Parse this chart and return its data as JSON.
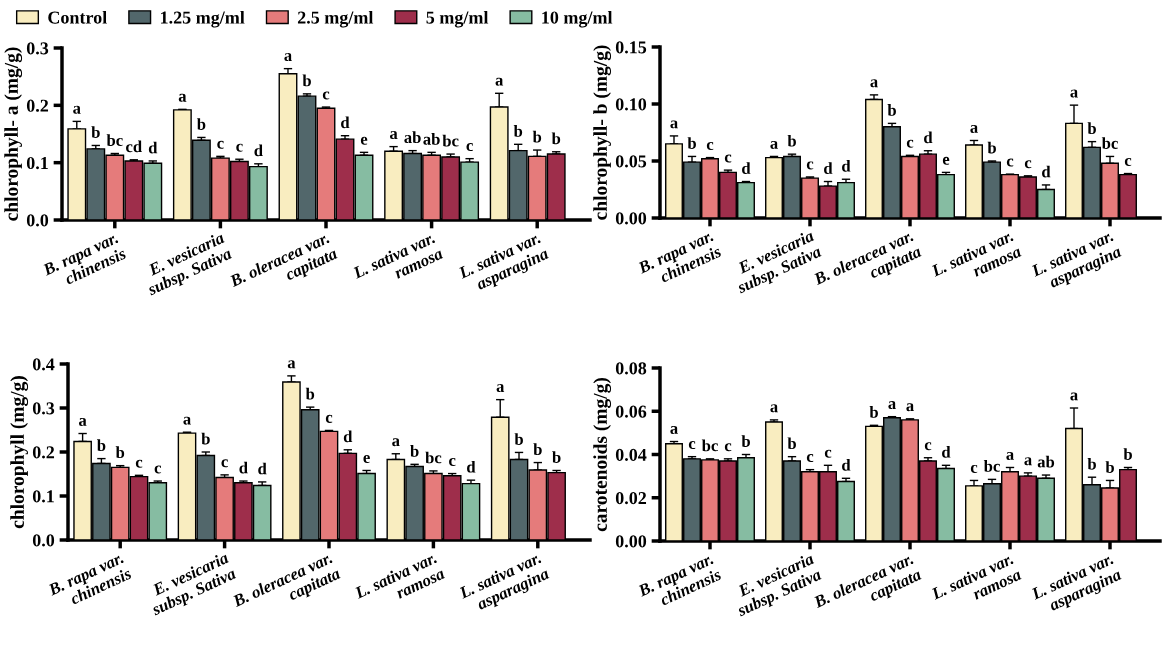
{
  "chart_data": [
    {
      "type": "bar",
      "ylabel": "chlorophyll- a (mg/g)",
      "legend": "top left",
      "categories": [
        "B. rapa var.\nchinensis",
        "E. vesicaria\nsubsp. Sativa",
        "B. oleracea var.\ncapitata",
        "L. sativa var.\nramosa",
        "L. sativa var.\nasparagina"
      ],
      "ylim": [
        0,
        0.3
      ],
      "yticks": [
        {
          "value": 0,
          "label": "0.0"
        },
        0.1,
        0.2,
        0.3
      ],
      "series": [
        {
          "name": "Control",
          "color": "#f9edc0",
          "values": [
            0.159,
            0.192,
            0.255,
            0.12,
            0.197
          ],
          "errors": [
            [
              0.159,
              0.172
            ],
            [
              0.192,
              0.193
            ],
            [
              0.255,
              0.264
            ],
            [
              0.12,
              0.128
            ],
            [
              0.197,
              0.221
            ]
          ],
          "value_labels": [
            "a",
            "a",
            "a",
            "a",
            "a"
          ]
        },
        {
          "name": "1.25 mg/ml",
          "color": "#52676b",
          "values": [
            0.124,
            0.139,
            0.216,
            0.116,
            0.121
          ],
          "errors": [
            [
              0.124,
              0.13
            ],
            [
              0.139,
              0.144
            ],
            [
              0.216,
              0.22
            ],
            [
              0.116,
              0.121
            ],
            [
              0.121,
              0.132
            ]
          ],
          "value_labels": [
            "b",
            "b",
            "b",
            "ab",
            "b"
          ]
        },
        {
          "name": "2.5 mg/ml",
          "color": "#e57b7b",
          "values": [
            0.113,
            0.108,
            0.195,
            0.113,
            0.111
          ],
          "errors": [
            [
              0.113,
              0.116
            ],
            [
              0.108,
              0.111
            ],
            [
              0.195,
              0.197
            ],
            [
              0.113,
              0.118
            ],
            [
              0.111,
              0.122
            ]
          ],
          "value_labels": [
            "bc",
            "c",
            "c",
            "ab",
            "b"
          ]
        },
        {
          "name": "5 mg/ml",
          "color": "#9e2e4b",
          "values": [
            0.103,
            0.102,
            0.141,
            0.11,
            0.115
          ],
          "errors": [
            [
              0.103,
              0.105
            ],
            [
              0.102,
              0.106
            ],
            [
              0.141,
              0.147
            ],
            [
              0.11,
              0.115
            ],
            [
              0.115,
              0.119
            ]
          ],
          "value_labels": [
            "cd",
            "c",
            "d",
            "bc",
            "b"
          ]
        },
        {
          "name": "10 mg/ml",
          "color": "#86bca2",
          "values": [
            0.099,
            0.093,
            0.113,
            0.101,
            null
          ],
          "errors": [
            [
              0.099,
              0.103
            ],
            [
              0.093,
              0.098
            ],
            [
              0.113,
              0.118
            ],
            [
              0.101,
              0.107
            ],
            null
          ],
          "value_labels": [
            "d",
            "d",
            "e",
            "c",
            null
          ]
        }
      ]
    },
    {
      "type": "bar",
      "ylabel": "chlorophyll- b (mg/g)",
      "categories": [
        "B. rapa var.\nchinensis",
        "E. vesicaria\nsubsp. Sativa",
        "B. oleracea var.\ncapitata",
        "L. sativa var.\nramosa",
        "L. sativa var.\nasparagina"
      ],
      "ylim": [
        0,
        0.15
      ],
      "yticks": [
        {
          "value": 0,
          "label": "0.00"
        },
        {
          "value": 0.05,
          "label": "0.05"
        },
        {
          "value": 0.1,
          "label": "0.10"
        },
        {
          "value": 0.15,
          "label": "0.15"
        }
      ],
      "series": [
        {
          "color": "#f9edc0",
          "values": [
            0.065,
            0.053,
            0.104,
            0.064,
            0.083
          ],
          "errors": [
            [
              0.065,
              0.072
            ],
            [
              0.053,
              0.054
            ],
            [
              0.104,
              0.108
            ],
            [
              0.064,
              0.068
            ],
            [
              0.083,
              0.099
            ]
          ],
          "value_labels": [
            "a",
            "a",
            "a",
            "a",
            "a"
          ]
        },
        {
          "color": "#52676b",
          "values": [
            0.049,
            0.054,
            0.08,
            0.049,
            0.062
          ],
          "errors": [
            [
              0.049,
              0.054
            ],
            [
              0.054,
              0.056
            ],
            [
              0.08,
              0.083
            ],
            [
              0.049,
              0.05
            ],
            [
              0.062,
              0.067
            ]
          ],
          "value_labels": [
            "b",
            "b",
            "b",
            "b",
            "b"
          ]
        },
        {
          "color": "#e57b7b",
          "values": [
            0.052,
            0.035,
            0.054,
            0.038,
            0.048
          ],
          "errors": [
            [
              0.052,
              0.053
            ],
            [
              0.035,
              0.036
            ],
            [
              0.054,
              0.055
            ],
            [
              0.038,
              0.0385
            ],
            [
              0.048,
              0.054
            ]
          ],
          "value_labels": [
            "c",
            "c",
            "c",
            "c",
            "bc"
          ]
        },
        {
          "color": "#9e2e4b",
          "values": [
            0.04,
            0.028,
            0.056,
            0.036,
            0.038
          ],
          "errors": [
            [
              0.04,
              0.042
            ],
            [
              0.028,
              0.032
            ],
            [
              0.056,
              0.059
            ],
            [
              0.036,
              0.037
            ],
            [
              0.038,
              0.039
            ]
          ],
          "value_labels": [
            "c",
            "d",
            "d",
            "c",
            "c"
          ]
        },
        {
          "color": "#86bca2",
          "values": [
            0.031,
            0.031,
            0.038,
            0.025,
            null
          ],
          "errors": [
            [
              0.031,
              0.032
            ],
            [
              0.031,
              0.034
            ],
            [
              0.038,
              0.04
            ],
            [
              0.025,
              0.029
            ],
            null
          ],
          "value_labels": [
            "d",
            "d",
            "e",
            "d",
            null
          ]
        }
      ]
    },
    {
      "type": "bar",
      "ylabel": "chlorophyll (mg/g)",
      "categories": [
        "B. rapa var.\nchinensis",
        "E. vesicaria\nsubsp. Sativa",
        "B. oleracea var.\ncapitata",
        "L. sativa var.\nramosa",
        "L. sativa var.\nasparagina"
      ],
      "ylim": [
        0,
        0.4
      ],
      "yticks": [
        {
          "value": 0,
          "label": "0.0"
        },
        0.1,
        0.2,
        0.3,
        0.4
      ],
      "series": [
        {
          "color": "#f9edc0",
          "values": [
            0.224,
            0.243,
            0.359,
            0.183,
            0.279
          ],
          "errors": [
            [
              0.224,
              0.242
            ],
            [
              0.243,
              0.245
            ],
            [
              0.359,
              0.373
            ],
            [
              0.183,
              0.196
            ],
            [
              0.279,
              0.319
            ]
          ],
          "value_labels": [
            "a",
            "a",
            "a",
            "a",
            "a"
          ]
        },
        {
          "color": "#52676b",
          "values": [
            0.174,
            0.192,
            0.296,
            0.167,
            0.183
          ],
          "errors": [
            [
              0.174,
              0.185
            ],
            [
              0.192,
              0.2
            ],
            [
              0.296,
              0.302
            ],
            [
              0.167,
              0.172
            ],
            [
              0.183,
              0.199
            ]
          ],
          "value_labels": [
            "b",
            "b",
            "b",
            "b",
            "b"
          ]
        },
        {
          "color": "#e57b7b",
          "values": [
            0.165,
            0.142,
            0.247,
            0.151,
            0.159
          ],
          "errors": [
            [
              0.165,
              0.169
            ],
            [
              0.142,
              0.148
            ],
            [
              0.247,
              0.249
            ],
            [
              0.151,
              0.157
            ],
            [
              0.159,
              0.176
            ]
          ],
          "value_labels": [
            "b",
            "c",
            "c",
            "bc",
            "b"
          ]
        },
        {
          "color": "#9e2e4b",
          "values": [
            0.144,
            0.13,
            0.197,
            0.146,
            0.153
          ],
          "errors": [
            [
              0.144,
              0.147
            ],
            [
              0.13,
              0.134
            ],
            [
              0.197,
              0.205
            ],
            [
              0.146,
              0.151
            ],
            [
              0.153,
              0.158
            ]
          ],
          "value_labels": [
            "c",
            "d",
            "d",
            "c",
            "b"
          ]
        },
        {
          "color": "#86bca2",
          "values": [
            0.13,
            0.124,
            0.151,
            0.128,
            null
          ],
          "errors": [
            [
              0.13,
              0.134
            ],
            [
              0.124,
              0.132
            ],
            [
              0.151,
              0.158
            ],
            [
              0.128,
              0.136
            ],
            null
          ],
          "value_labels": [
            "c",
            "d",
            "e",
            "d",
            null
          ]
        }
      ]
    },
    {
      "type": "bar",
      "ylabel": "carotenoids (mg/g)",
      "categories": [
        "B. rapa var.\nchinensis",
        "E. vesicaria\nsubsp. Sativa",
        "B. oleracea var.\ncapitata",
        "L. sativa var.\nramosa",
        "L. sativa var.\nasparagina"
      ],
      "ylim": [
        0,
        0.08
      ],
      "yticks": [
        {
          "value": 0,
          "label": "0.00"
        },
        {
          "value": 0.02,
          "label": "0.02"
        },
        {
          "value": 0.04,
          "label": "0.04"
        },
        {
          "value": 0.06,
          "label": "0.06"
        },
        {
          "value": 0.08,
          "label": "0.08"
        }
      ],
      "series": [
        {
          "color": "#f9edc0",
          "values": [
            0.045,
            0.055,
            0.053,
            0.0255,
            0.052
          ],
          "errors": [
            [
              0.045,
              0.046
            ],
            [
              0.055,
              0.056
            ],
            [
              0.053,
              0.0535
            ],
            [
              0.0255,
              0.028
            ],
            [
              0.052,
              0.0615
            ]
          ],
          "value_labels": [
            "a",
            "a",
            "b",
            "c",
            "a"
          ]
        },
        {
          "color": "#52676b",
          "values": [
            0.038,
            0.037,
            0.057,
            0.0265,
            0.026
          ],
          "errors": [
            [
              0.038,
              0.039
            ],
            [
              0.037,
              0.039
            ],
            [
              0.057,
              0.0575
            ],
            [
              0.0265,
              0.0285
            ],
            [
              0.026,
              0.0295
            ]
          ],
          "value_labels": [
            "c",
            "b",
            "a",
            "bc",
            "b"
          ]
        },
        {
          "color": "#e57b7b",
          "values": [
            0.0375,
            0.032,
            0.056,
            0.032,
            0.0245
          ],
          "errors": [
            [
              0.0375,
              0.038
            ],
            [
              0.032,
              0.033
            ],
            [
              0.056,
              0.0565
            ],
            [
              0.032,
              0.034
            ],
            [
              0.0245,
              0.028
            ]
          ],
          "value_labels": [
            "bc",
            "c",
            "a",
            "a",
            "b"
          ]
        },
        {
          "color": "#9e2e4b",
          "values": [
            0.037,
            0.032,
            0.037,
            0.03,
            0.033
          ],
          "errors": [
            [
              0.037,
              0.038
            ],
            [
              0.032,
              0.035
            ],
            [
              0.037,
              0.0385
            ],
            [
              0.03,
              0.0315
            ],
            [
              0.033,
              0.034
            ]
          ],
          "value_labels": [
            "c",
            "c",
            "c",
            "a",
            "b"
          ]
        },
        {
          "color": "#86bca2",
          "values": [
            0.0385,
            0.0275,
            0.0335,
            0.029,
            null
          ],
          "errors": [
            [
              0.0385,
              0.04
            ],
            [
              0.0275,
              0.029
            ],
            [
              0.0335,
              0.035
            ],
            [
              0.029,
              0.0305
            ],
            null
          ],
          "value_labels": [
            "b",
            "d",
            "d",
            "ab",
            null
          ]
        }
      ]
    }
  ]
}
